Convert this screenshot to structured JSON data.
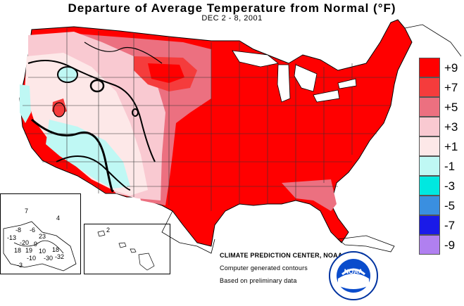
{
  "title": "Departure of Average Temperature from Normal (°F)",
  "subtitle": "DEC 2 - 8, 2001",
  "legend": [
    {
      "label": "+9",
      "color": "#ff0000"
    },
    {
      "label": "+7",
      "color": "#f53c3c"
    },
    {
      "label": "+5",
      "color": "#ec7080"
    },
    {
      "label": "+3",
      "color": "#f9c9d1"
    },
    {
      "label": "+1",
      "color": "#fde8e8"
    },
    {
      "label": "-1",
      "color": "#bff8f4"
    },
    {
      "label": "-3",
      "color": "#00e8e0"
    },
    {
      "label": "-5",
      "color": "#3a8fe0"
    },
    {
      "label": "-7",
      "color": "#1a1ae8"
    },
    {
      "label": "-9",
      "color": "#b080f0"
    }
  ],
  "credits": {
    "center": "CLIMATE PREDICTION CENTER, NOAA",
    "contours": "Computer generated contours",
    "data": "Based on preliminary data"
  },
  "alaska_values": [
    "7",
    "4",
    "-8",
    "-6",
    "-13",
    "23",
    "-20",
    "9",
    "18",
    "19",
    "10",
    "18",
    "-10",
    "-30",
    "-32",
    "-3"
  ],
  "hawaii_values": [
    "2"
  ],
  "logo_text": "NOAA"
}
